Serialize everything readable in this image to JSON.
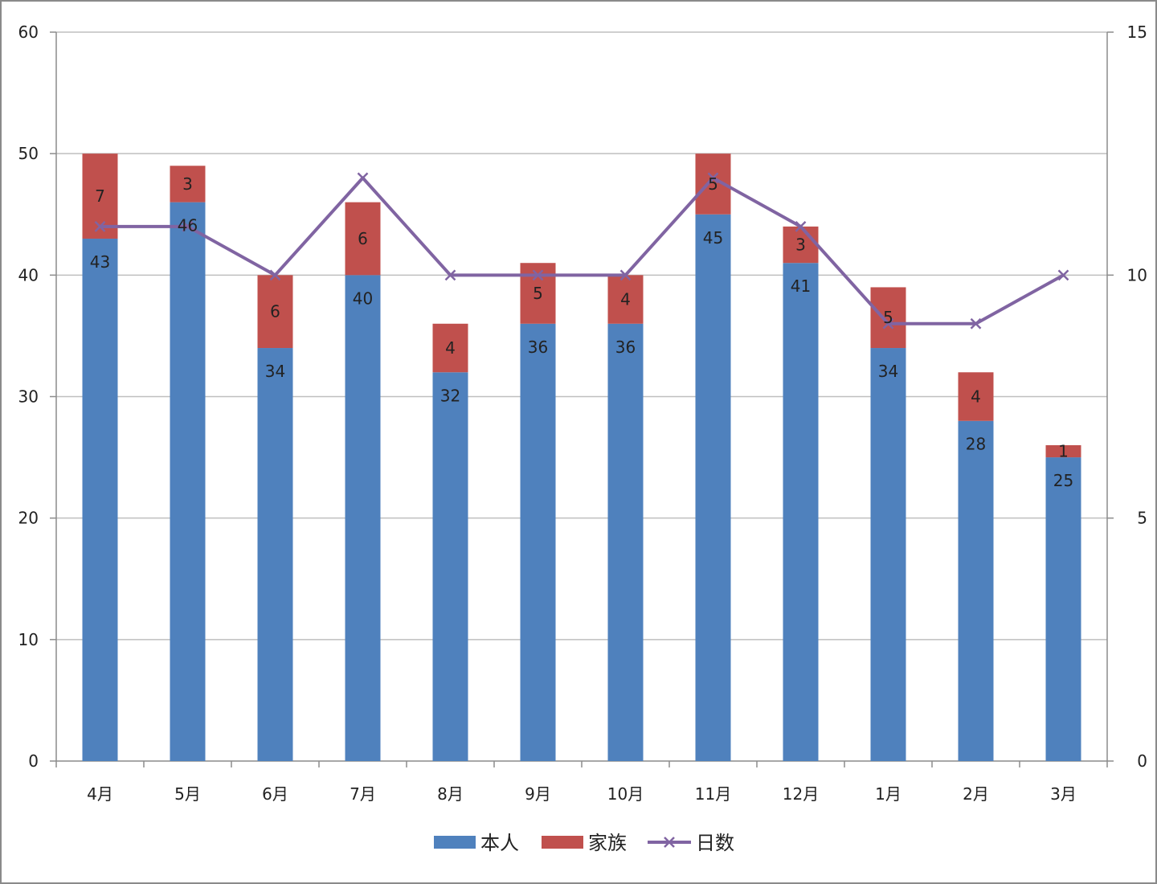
{
  "chart_data": {
    "type": "bar",
    "stacked": true,
    "categories": [
      "4月",
      "5月",
      "6月",
      "7月",
      "8月",
      "9月",
      "10月",
      "11月",
      "12月",
      "1月",
      "2月",
      "3月"
    ],
    "series": [
      {
        "name": "本人",
        "axis": "left",
        "type": "bar",
        "color": "#4F81BD",
        "values": [
          43,
          46,
          34,
          40,
          32,
          36,
          36,
          45,
          41,
          34,
          28,
          25
        ]
      },
      {
        "name": "家族",
        "axis": "left",
        "type": "bar",
        "color": "#C0504D",
        "values": [
          7,
          3,
          6,
          6,
          4,
          5,
          4,
          5,
          3,
          5,
          4,
          1
        ]
      },
      {
        "name": "日数",
        "axis": "right",
        "type": "line",
        "color": "#8064A2",
        "values": [
          11,
          11,
          10,
          12,
          10,
          10,
          10,
          12,
          11,
          9,
          9,
          10
        ]
      }
    ],
    "ylim": [
      0,
      60
    ],
    "yticks": [
      0,
      10,
      20,
      30,
      40,
      50,
      60
    ],
    "y2lim": [
      0,
      15
    ],
    "y2ticks": [
      0,
      5,
      10,
      15
    ],
    "grid": true,
    "legend": "bottom"
  }
}
